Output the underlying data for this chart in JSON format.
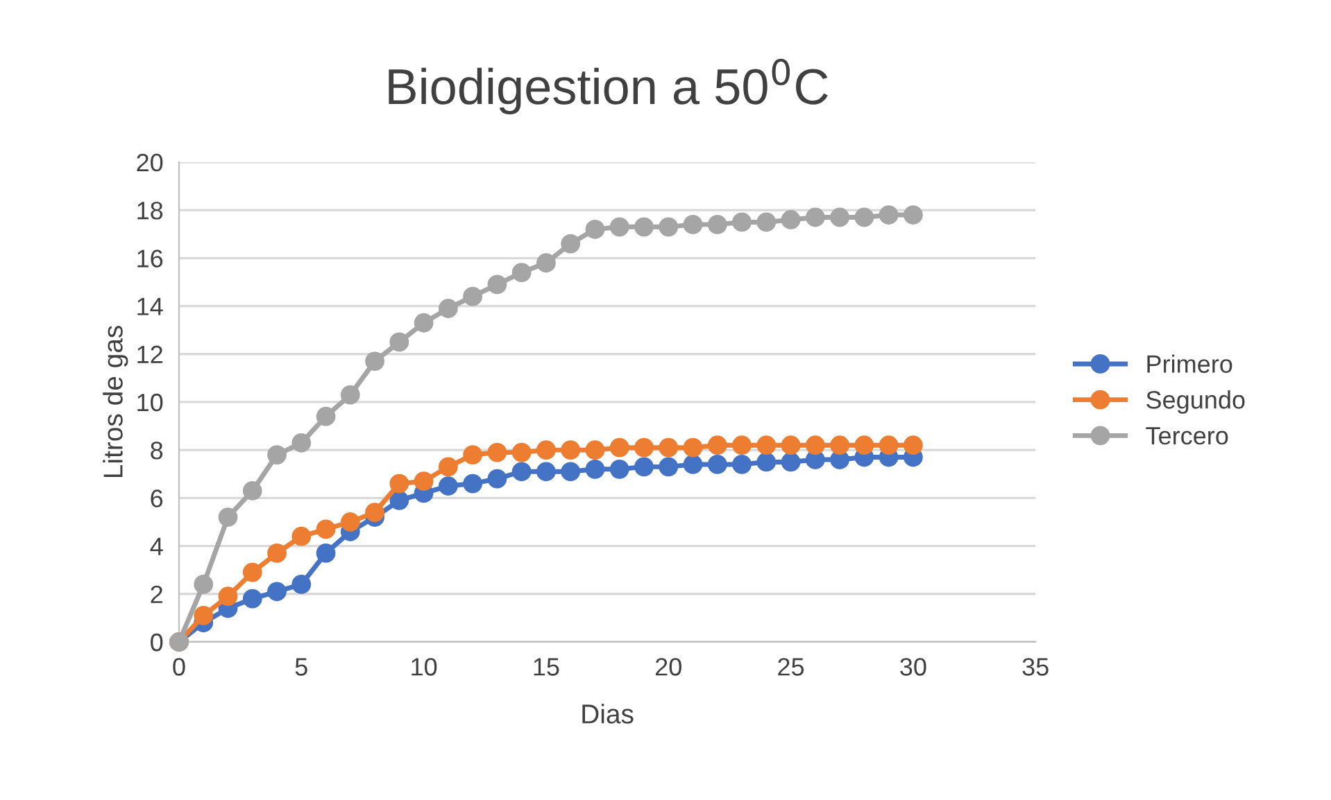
{
  "chart_data": {
    "type": "line",
    "title": "Biodigestion a 50$^{0}$C",
    "xlabel": "Dias",
    "ylabel": "Litros de gas",
    "x": [
      0,
      1,
      2,
      3,
      4,
      5,
      6,
      7,
      8,
      9,
      10,
      11,
      12,
      13,
      14,
      15,
      16,
      17,
      18,
      19,
      20,
      21,
      22,
      23,
      24,
      25,
      26,
      27,
      28,
      29,
      30
    ],
    "series": [
      {
        "name": "Primero",
        "color": "#4472c4",
        "values": [
          0,
          0.8,
          1.4,
          1.8,
          2.1,
          2.4,
          3.7,
          4.6,
          5.2,
          5.9,
          6.2,
          6.5,
          6.6,
          6.8,
          7.1,
          7.1,
          7.1,
          7.2,
          7.2,
          7.3,
          7.3,
          7.4,
          7.4,
          7.4,
          7.5,
          7.5,
          7.6,
          7.6,
          7.7,
          7.7,
          7.7
        ]
      },
      {
        "name": "Segundo",
        "color": "#ed7d31",
        "values": [
          0,
          1.1,
          1.9,
          2.9,
          3.7,
          4.4,
          4.7,
          5.0,
          5.4,
          6.6,
          6.7,
          7.3,
          7.8,
          7.9,
          7.9,
          8.0,
          8.0,
          8.0,
          8.1,
          8.1,
          8.1,
          8.1,
          8.2,
          8.2,
          8.2,
          8.2,
          8.2,
          8.2,
          8.2,
          8.2,
          8.2
        ]
      },
      {
        "name": "Tercero",
        "color": "#a5a5a5",
        "values": [
          0,
          2.4,
          5.2,
          6.3,
          7.8,
          8.3,
          9.4,
          10.3,
          11.7,
          12.5,
          13.3,
          13.9,
          14.4,
          14.9,
          15.4,
          15.8,
          16.6,
          17.2,
          17.3,
          17.3,
          17.3,
          17.4,
          17.4,
          17.5,
          17.5,
          17.6,
          17.7,
          17.7,
          17.7,
          17.8,
          17.8
        ]
      }
    ],
    "xlim": [
      0,
      35
    ],
    "xticks": [
      0,
      5,
      10,
      15,
      20,
      25,
      30,
      35
    ],
    "ylim": [
      0,
      20
    ],
    "yticks": [
      0,
      2,
      4,
      6,
      8,
      10,
      12,
      14,
      16,
      18,
      20
    ],
    "grid": "y",
    "legend": "right",
    "marker": "circle",
    "line_style": "solid"
  }
}
